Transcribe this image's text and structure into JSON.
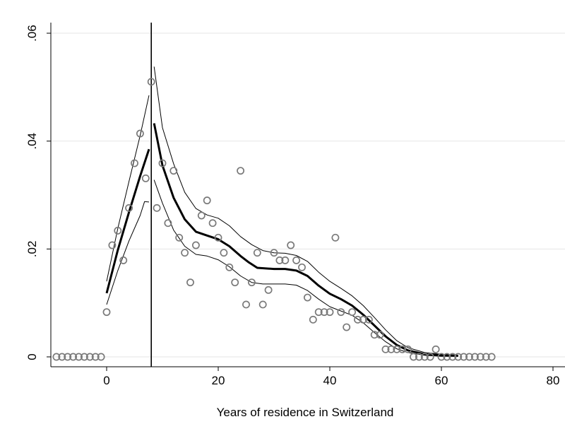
{
  "chart_data": {
    "type": "scatter",
    "title": "",
    "xlabel": "Years of residence in Switzerland",
    "ylabel": "",
    "xlim": [
      -10,
      81
    ],
    "ylim": [
      -0.0005,
      0.061
    ],
    "x_ticks": [
      0,
      20,
      40,
      60,
      80
    ],
    "x_tick_labels": [
      "0",
      "20",
      "40",
      "60",
      "80"
    ],
    "y_ticks": [
      0,
      0.02,
      0.04,
      0.06
    ],
    "y_tick_labels": [
      "0",
      ".02",
      ".04",
      ".06"
    ],
    "grid": "horizontal",
    "cutoff_x": 8,
    "points": [
      [
        -9,
        0
      ],
      [
        -8,
        0
      ],
      [
        -7,
        0
      ],
      [
        -6,
        0
      ],
      [
        -5,
        0
      ],
      [
        -4,
        0
      ],
      [
        -3,
        0
      ],
      [
        -2,
        0
      ],
      [
        -1,
        0
      ],
      [
        0,
        0.0083
      ],
      [
        1,
        0.0207
      ],
      [
        2,
        0.0234
      ],
      [
        3,
        0.0179
      ],
      [
        4,
        0.0276
      ],
      [
        5,
        0.0359
      ],
      [
        6,
        0.0414
      ],
      [
        7,
        0.0331
      ],
      [
        8,
        0.051
      ],
      [
        9,
        0.0276
      ],
      [
        10,
        0.0359
      ],
      [
        11,
        0.0248
      ],
      [
        12,
        0.0345
      ],
      [
        13,
        0.0221
      ],
      [
        14,
        0.0193
      ],
      [
        15,
        0.0138
      ],
      [
        16,
        0.0207
      ],
      [
        17,
        0.0262
      ],
      [
        18,
        0.029
      ],
      [
        19,
        0.0248
      ],
      [
        20,
        0.0221
      ],
      [
        21,
        0.0193
      ],
      [
        22,
        0.0166
      ],
      [
        23,
        0.0138
      ],
      [
        24,
        0.0345
      ],
      [
        25,
        0.0097
      ],
      [
        26,
        0.0138
      ],
      [
        27,
        0.0193
      ],
      [
        28,
        0.0097
      ],
      [
        29,
        0.0124
      ],
      [
        30,
        0.0193
      ],
      [
        31,
        0.0179
      ],
      [
        32,
        0.0179
      ],
      [
        33,
        0.0207
      ],
      [
        34,
        0.0179
      ],
      [
        35,
        0.0166
      ],
      [
        36,
        0.011
      ],
      [
        37,
        0.0069
      ],
      [
        38,
        0.0083
      ],
      [
        39,
        0.0083
      ],
      [
        40,
        0.0083
      ],
      [
        41,
        0.0221
      ],
      [
        42,
        0.0083
      ],
      [
        43,
        0.0055
      ],
      [
        44,
        0.0083
      ],
      [
        45,
        0.0069
      ],
      [
        46,
        0.0069
      ],
      [
        47,
        0.0069
      ],
      [
        48,
        0.0041
      ],
      [
        49,
        0.0041
      ],
      [
        50,
        0.0014
      ],
      [
        51,
        0.0014
      ],
      [
        52,
        0.0014
      ],
      [
        53,
        0.0014
      ],
      [
        54,
        0.0014
      ],
      [
        55,
        0
      ],
      [
        56,
        0
      ],
      [
        57,
        0
      ],
      [
        58,
        0
      ],
      [
        59,
        0.0014
      ],
      [
        60,
        0
      ],
      [
        61,
        0
      ],
      [
        62,
        0
      ],
      [
        63,
        0
      ],
      [
        64,
        0
      ],
      [
        65,
        0
      ],
      [
        66,
        0
      ],
      [
        67,
        0
      ],
      [
        68,
        0
      ],
      [
        69,
        0
      ]
    ],
    "series": [
      {
        "role": "fit",
        "segments": [
          [
            [
              0,
              0.0118
            ],
            [
              2,
              0.0198
            ],
            [
              4,
              0.0268
            ],
            [
              6,
              0.0335
            ],
            [
              7.6,
              0.0385
            ]
          ],
          [
            [
              8.5,
              0.0433
            ],
            [
              10,
              0.0355
            ],
            [
              12,
              0.0295
            ],
            [
              14,
              0.0255
            ],
            [
              16,
              0.0232
            ],
            [
              18,
              0.0225
            ],
            [
              20,
              0.0218
            ],
            [
              22,
              0.0205
            ],
            [
              24,
              0.0187
            ],
            [
              25.5,
              0.0175
            ],
            [
              27,
              0.0165
            ],
            [
              30,
              0.0163
            ],
            [
              32,
              0.0163
            ],
            [
              34,
              0.016
            ],
            [
              36,
              0.015
            ],
            [
              38,
              0.0132
            ],
            [
              40,
              0.0117
            ],
            [
              42,
              0.0107
            ],
            [
              44,
              0.0095
            ],
            [
              46,
              0.0078
            ],
            [
              48,
              0.0058
            ],
            [
              50,
              0.0038
            ],
            [
              52,
              0.0022
            ],
            [
              54,
              0.0012
            ],
            [
              57,
              0.0005
            ],
            [
              60,
              0.0003
            ],
            [
              63,
              0.0002
            ]
          ]
        ]
      },
      {
        "role": "ci-upper",
        "segments": [
          [
            [
              0,
              0.014
            ],
            [
              2,
              0.0238
            ],
            [
              4,
              0.0325
            ],
            [
              6,
              0.041
            ],
            [
              7.6,
              0.0485
            ]
          ],
          [
            [
              8.5,
              0.0538
            ],
            [
              10,
              0.0425
            ],
            [
              12,
              0.0358
            ],
            [
              14,
              0.0305
            ],
            [
              16,
              0.0275
            ],
            [
              18,
              0.0263
            ],
            [
              20,
              0.0257
            ],
            [
              22,
              0.0243
            ],
            [
              24,
              0.0223
            ],
            [
              26,
              0.0208
            ],
            [
              28,
              0.0197
            ],
            [
              30,
              0.0193
            ],
            [
              32,
              0.0192
            ],
            [
              34,
              0.0188
            ],
            [
              36,
              0.0177
            ],
            [
              38,
              0.0157
            ],
            [
              40,
              0.014
            ],
            [
              42,
              0.0127
            ],
            [
              44,
              0.0113
            ],
            [
              46,
              0.0095
            ],
            [
              48,
              0.0073
            ],
            [
              50,
              0.005
            ],
            [
              52,
              0.003
            ],
            [
              54,
              0.0017
            ],
            [
              57,
              0.0008
            ],
            [
              60,
              0.0005
            ],
            [
              63,
              0.0003
            ]
          ]
        ]
      },
      {
        "role": "ci-lower",
        "segments": [
          [
            [
              0,
              0.0097
            ],
            [
              2,
              0.016
            ],
            [
              4,
              0.0215
            ],
            [
              6,
              0.0262
            ],
            [
              6.8,
              0.0288
            ],
            [
              7.6,
              0.0287
            ]
          ],
          [
            [
              8.5,
              0.0328
            ],
            [
              10,
              0.0285
            ],
            [
              12,
              0.0235
            ],
            [
              14,
              0.0205
            ],
            [
              16,
              0.019
            ],
            [
              18,
              0.0187
            ],
            [
              20,
              0.018
            ],
            [
              22,
              0.0167
            ],
            [
              24,
              0.015
            ],
            [
              26,
              0.0138
            ],
            [
              28,
              0.0135
            ],
            [
              30,
              0.0135
            ],
            [
              32,
              0.0135
            ],
            [
              34,
              0.0133
            ],
            [
              36,
              0.0123
            ],
            [
              38,
              0.0107
            ],
            [
              40,
              0.0093
            ],
            [
              42,
              0.0085
            ],
            [
              44,
              0.0077
            ],
            [
              46,
              0.0063
            ],
            [
              48,
              0.0045
            ],
            [
              50,
              0.0028
            ],
            [
              52,
              0.0015
            ],
            [
              54,
              0.0008
            ],
            [
              57,
              0.0003
            ],
            [
              60,
              0.0001
            ],
            [
              63,
              0.0001
            ]
          ]
        ]
      }
    ]
  }
}
